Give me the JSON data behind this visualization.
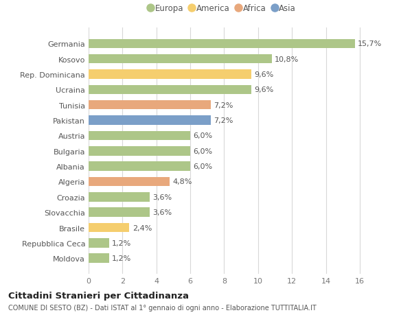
{
  "categories": [
    "Germania",
    "Kosovo",
    "Rep. Dominicana",
    "Ucraina",
    "Tunisia",
    "Pakistan",
    "Austria",
    "Bulgaria",
    "Albania",
    "Algeria",
    "Croazia",
    "Slovacchia",
    "Brasile",
    "Repubblica Ceca",
    "Moldova"
  ],
  "values": [
    15.7,
    10.8,
    9.6,
    9.6,
    7.2,
    7.2,
    6.0,
    6.0,
    6.0,
    4.8,
    3.6,
    3.6,
    2.4,
    1.2,
    1.2
  ],
  "labels": [
    "15,7%",
    "10,8%",
    "9,6%",
    "9,6%",
    "7,2%",
    "7,2%",
    "6,0%",
    "6,0%",
    "6,0%",
    "4,8%",
    "3,6%",
    "3,6%",
    "2,4%",
    "1,2%",
    "1,2%"
  ],
  "colors": [
    "#adc688",
    "#adc688",
    "#f5ce6e",
    "#adc688",
    "#e8a87c",
    "#7b9fc8",
    "#adc688",
    "#adc688",
    "#adc688",
    "#e8a87c",
    "#adc688",
    "#adc688",
    "#f5ce6e",
    "#adc688",
    "#adc688"
  ],
  "legend": [
    {
      "label": "Europa",
      "color": "#adc688"
    },
    {
      "label": "America",
      "color": "#f5ce6e"
    },
    {
      "label": "Africa",
      "color": "#e8a87c"
    },
    {
      "label": "Asia",
      "color": "#7b9fc8"
    }
  ],
  "xlim": [
    0,
    17.5
  ],
  "xticks": [
    0,
    2,
    4,
    6,
    8,
    10,
    12,
    14,
    16
  ],
  "title": "Cittadini Stranieri per Cittadinanza",
  "subtitle": "COMUNE DI SESTO (BZ) - Dati ISTAT al 1° gennaio di ogni anno - Elaborazione TUTTITALIA.IT",
  "bg_color": "#ffffff",
  "grid_color": "#d8d8d8",
  "bar_height": 0.6,
  "label_fontsize": 8,
  "ytick_fontsize": 8,
  "xtick_fontsize": 8
}
